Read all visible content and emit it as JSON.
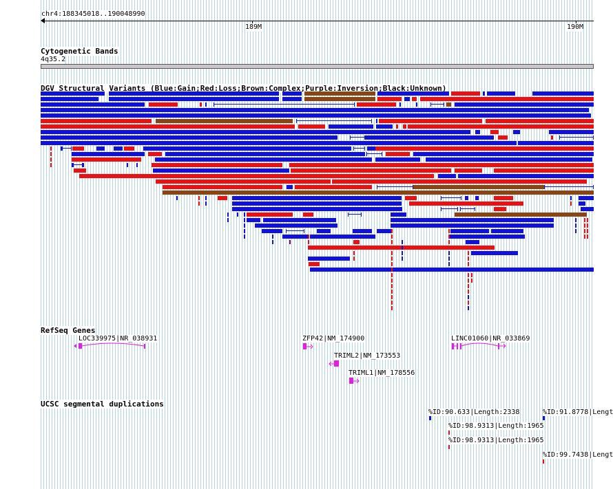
{
  "view": {
    "location": "chr4:188345018..190048990",
    "ruler_ticks": [
      "189M",
      "190M"
    ]
  },
  "tracks": {
    "cytoband": {
      "title": "Cytogenetic Bands",
      "band": "4q35.2"
    },
    "dgv": {
      "title": "DGV Structural Variants (Blue:Gain;Red:Loss;Brown:Complex;Purple:Inversion;Black:Unknown)"
    },
    "refseq": {
      "title": "RefSeq Genes",
      "genes": [
        {
          "label": "LOC339975|NR_038931"
        },
        {
          "label": "ZFP42|NM_174900"
        },
        {
          "label": "TRIML2|NM_173553"
        },
        {
          "label": "TRIML1|NM_178556"
        },
        {
          "label": "LINC01060|NR_033869"
        }
      ]
    },
    "segdup": {
      "title": "UCSC segmental duplications",
      "features": [
        {
          "label": "%ID:90.633|Length:2338"
        },
        {
          "label": "%ID:91.8778|Lengt"
        },
        {
          "label": "%ID:98.9313|Length:1965"
        },
        {
          "label": "%ID:98.9313|Length:1965"
        },
        {
          "label": "%ID:99.7438|Lengt"
        }
      ]
    }
  },
  "colors": {
    "gain": "#1010e0",
    "loss": "#ee1010",
    "complex": "#8b4513",
    "inversion": "#800080",
    "gene": "#e020e0"
  }
}
